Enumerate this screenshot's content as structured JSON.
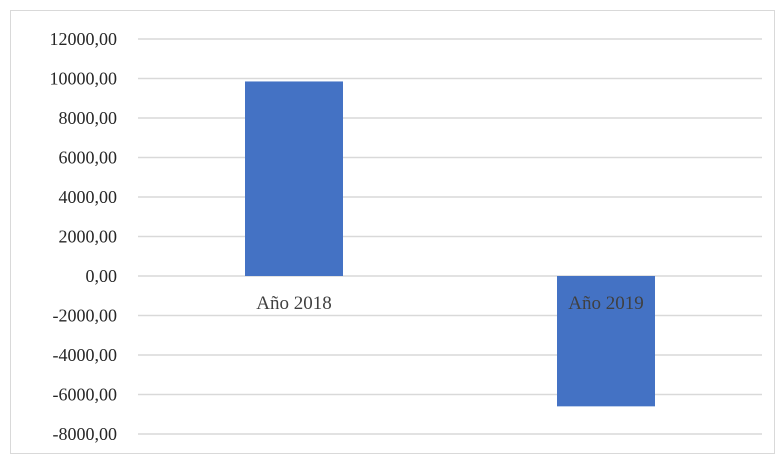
{
  "chart_data": {
    "type": "bar",
    "title": "",
    "xlabel": "",
    "ylabel": "",
    "categories": [
      "Año 2018",
      "Año 2019"
    ],
    "values": [
      9850,
      -6600
    ],
    "ylim": [
      -8000,
      12000
    ],
    "y_ticks": [
      12000,
      10000,
      8000,
      6000,
      4000,
      2000,
      0,
      -2000,
      -4000,
      -6000,
      -8000
    ],
    "y_tick_labels": [
      "12000,00",
      "10000,00",
      "8000,00",
      "6000,00",
      "4000,00",
      "2000,00",
      "0,00",
      "-2000,00",
      "-4000,00",
      "-6000,00",
      "-8000,00"
    ],
    "grid": true,
    "legend": "none",
    "bar_color": "#4472C4",
    "grid_color": "#D9D9D9"
  }
}
